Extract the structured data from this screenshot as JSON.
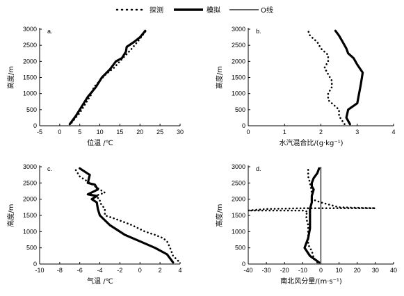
{
  "legend": {
    "observed": "探测",
    "simulated": "模拟",
    "zero_line": "O线"
  },
  "chart_data": [
    {
      "type": "line",
      "panel_label": "a.",
      "xlabel": "位温 /℃",
      "ylabel": "高度/m",
      "xlim": [
        -5,
        30
      ],
      "ylim": [
        0,
        3000
      ],
      "xticks": [
        -5,
        0,
        5,
        10,
        15,
        20,
        25,
        30
      ],
      "yticks": [
        0,
        500,
        1000,
        1500,
        2000,
        2500,
        3000
      ],
      "grid": false,
      "series": [
        {
          "name": "探测",
          "style": "dotted",
          "x": [
            3.0,
            4.0,
            5.0,
            6.0,
            7.0,
            8.0,
            8.5,
            10.0,
            11.5,
            13.5,
            15.0,
            16.5,
            18.0,
            20.0,
            21.5
          ],
          "y": [
            100,
            250,
            400,
            600,
            800,
            1000,
            1200,
            1400,
            1600,
            1800,
            2000,
            2200,
            2400,
            2700,
            2950
          ]
        },
        {
          "name": "模拟",
          "style": "thick",
          "x": [
            2.5,
            4.0,
            5.5,
            7.0,
            9.0,
            10.5,
            12.5,
            14.0,
            15.5,
            16.5,
            16.7,
            18.5,
            20.0,
            21.0,
            21.3
          ],
          "y": [
            50,
            300,
            600,
            900,
            1200,
            1500,
            1750,
            2000,
            2100,
            2300,
            2450,
            2600,
            2750,
            2900,
            2950
          ]
        }
      ]
    },
    {
      "type": "line",
      "panel_label": "b.",
      "xlabel": "水汽混合比/(g·kg⁻¹)",
      "ylabel": "高度/m",
      "xlim": [
        0,
        4
      ],
      "ylim": [
        0,
        3000
      ],
      "xticks": [
        0,
        1,
        2,
        3,
        4
      ],
      "yticks": [
        0,
        500,
        1000,
        1500,
        2000,
        2500,
        3000
      ],
      "grid": false,
      "series": [
        {
          "name": "探测",
          "style": "dotted",
          "x": [
            2.65,
            2.5,
            2.5,
            2.2,
            2.2,
            2.3,
            2.3,
            2.2,
            2.1,
            2.2,
            2.2,
            2.0,
            1.9,
            1.7,
            1.65
          ],
          "y": [
            50,
            300,
            500,
            800,
            1000,
            1200,
            1400,
            1600,
            1800,
            2000,
            2200,
            2400,
            2600,
            2800,
            2950
          ]
        },
        {
          "name": "模拟",
          "style": "thick",
          "x": [
            2.8,
            2.7,
            2.75,
            3.0,
            3.05,
            3.1,
            3.15,
            3.0,
            2.9,
            2.75,
            2.7,
            2.6,
            2.5,
            2.4
          ],
          "y": [
            50,
            250,
            500,
            700,
            1000,
            1300,
            1650,
            1900,
            2100,
            2250,
            2400,
            2600,
            2800,
            2950
          ]
        }
      ]
    },
    {
      "type": "line",
      "panel_label": "c.",
      "xlabel": "气温 /℃",
      "ylabel": "高度/m",
      "xlim": [
        -10,
        4
      ],
      "ylim": [
        0,
        3000
      ],
      "xticks": [
        -10,
        -8,
        -6,
        -4,
        -2,
        0,
        2,
        4
      ],
      "yticks": [
        0,
        500,
        1000,
        1500,
        2000,
        2500,
        3000
      ],
      "grid": false,
      "series": [
        {
          "name": "探测",
          "style": "dotted",
          "x": [
            3.8,
            3.3,
            3.0,
            2.7,
            2.3,
            1.5,
            0.5,
            -0.8,
            -2.5,
            -3.5,
            -3.5,
            -4.0,
            -4.0,
            -4.5,
            -4.0,
            -3.5,
            -4.0,
            -5.0,
            -6.0,
            -6.5
          ],
          "y": [
            100,
            250,
            500,
            700,
            800,
            900,
            1000,
            1200,
            1400,
            1500,
            1700,
            1900,
            2000,
            2100,
            2150,
            2200,
            2300,
            2500,
            2700,
            2950
          ]
        },
        {
          "name": "模拟",
          "style": "thick",
          "x": [
            3.3,
            2.7,
            1.5,
            0.0,
            -1.5,
            -3.0,
            -4.0,
            -4.2,
            -4.3,
            -4.8,
            -4.3,
            -5.2,
            -4.2,
            -4.5,
            -5.2,
            -5.0,
            -6.0
          ],
          "y": [
            50,
            300,
            500,
            700,
            900,
            1200,
            1500,
            1700,
            1900,
            2000,
            2100,
            2150,
            2300,
            2450,
            2500,
            2750,
            2950
          ]
        }
      ]
    },
    {
      "type": "line",
      "panel_label": "d.",
      "xlabel": "南北风分量/(m·s⁻¹)",
      "ylabel": "高度/m",
      "xlim": [
        -40,
        40
      ],
      "ylim": [
        0,
        3000
      ],
      "xticks": [
        -40,
        -30,
        -20,
        -10,
        0,
        10,
        20,
        30,
        40
      ],
      "yticks": [
        0,
        500,
        1000,
        1500,
        2000,
        2500,
        3000
      ],
      "grid": false,
      "series": [
        {
          "name": "探测",
          "style": "dotted",
          "x": [
            -2,
            -4,
            -5,
            -7,
            -7,
            -7,
            -7,
            -8,
            -8,
            -6,
            -10,
            -20,
            -30,
            -40,
            -30,
            -10,
            10,
            20,
            30,
            10,
            0,
            -5,
            -5,
            -6,
            -7,
            -7
          ],
          "y": [
            50,
            200,
            400,
            600,
            800,
            1000,
            1200,
            1400,
            1550,
            1600,
            1650,
            1650,
            1650,
            1650,
            1700,
            1720,
            1720,
            1720,
            1720,
            1750,
            1900,
            2000,
            2200,
            2500,
            2700,
            2950
          ]
        },
        {
          "name": "模拟",
          "style": "thick",
          "x": [
            -1,
            -6,
            -9,
            -7,
            -6,
            -6,
            -6,
            -5,
            -5,
            -4,
            -5,
            -5,
            -4,
            -2,
            -1
          ],
          "y": [
            50,
            250,
            500,
            800,
            1100,
            1400,
            1700,
            1900,
            2100,
            2300,
            2400,
            2500,
            2650,
            2800,
            2950
          ]
        },
        {
          "name": "O线",
          "style": "thin",
          "x": [
            0,
            0
          ],
          "y": [
            0,
            3000
          ]
        }
      ]
    }
  ]
}
